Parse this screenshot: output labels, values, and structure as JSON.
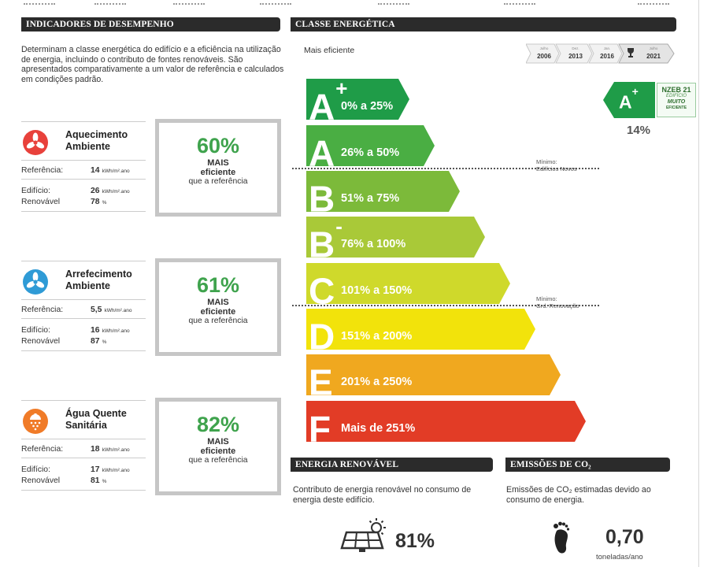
{
  "colors": {
    "header_bg": "#2b2b2b",
    "pct_green": "#3fa34d",
    "box_border": "#c6c6c6",
    "class_colors": [
      "#1f9c48",
      "#4aae43",
      "#7cba3a",
      "#a9c938",
      "#cfd92b",
      "#f2e30b",
      "#f0a81f",
      "#e23c26"
    ]
  },
  "performance": {
    "header": "INDICADORES DE DESEMPENHO",
    "intro": "Determinam a classe energética do edifício e a eficiência na utilização de energia, incluindo o contributo de fontes renováveis. São apresentados comparativamente a um valor de referência e calculados em condições padrão.",
    "services": [
      {
        "icon": "heating-fan-icon",
        "icon_color": "#e8413b",
        "title_line1": "Aquecimento",
        "title_line2": "Ambiente",
        "ref_label": "Referência:",
        "ref_value": "14",
        "ref_unit": "kWh/m².ano",
        "building_label": "Edifício:",
        "building_value": "26",
        "building_unit": "kWh/m².ano",
        "renew_label": "Renovável",
        "renew_value": "78",
        "renew_unit": "%",
        "pct": "60%",
        "mais": "MAIS",
        "eficiente": "eficiente",
        "ref_text": "que a referência"
      },
      {
        "icon": "cooling-fan-icon",
        "icon_color": "#2f9bd6",
        "title_line1": "Arrefecimento",
        "title_line2": "Ambiente",
        "ref_label": "Referência:",
        "ref_value": "5,5",
        "ref_unit": "kWh/m².ano",
        "building_label": "Edifício:",
        "building_value": "16",
        "building_unit": "kWh/m².ano",
        "renew_label": "Renovável",
        "renew_value": "87",
        "renew_unit": "%",
        "pct": "61%",
        "mais": "MAIS",
        "eficiente": "eficiente",
        "ref_text": "que a referência"
      },
      {
        "icon": "hot-water-icon",
        "icon_color": "#f07b28",
        "title_line1": "Água Quente",
        "title_line2": "Sanitária",
        "ref_label": "Referência:",
        "ref_value": "18",
        "ref_unit": "kWh/m².ano",
        "building_label": "Edifício:",
        "building_value": "17",
        "building_unit": "kWh/m².ano",
        "renew_label": "Renovável",
        "renew_value": "81",
        "renew_unit": "%",
        "pct": "82%",
        "mais": "MAIS",
        "eficiente": "eficiente",
        "ref_text": "que a referência"
      }
    ]
  },
  "energy_class": {
    "header": "CLASSE ENERGÉTICA",
    "more_efficient": "Mais eficiente",
    "timeline": [
      {
        "month": "Julho",
        "year": "2006"
      },
      {
        "month": "Dez.",
        "year": "2013"
      },
      {
        "month": "Jan.",
        "year": "2016"
      },
      {
        "month": "Julho",
        "year": "2021"
      }
    ],
    "classes": [
      {
        "letter": "A",
        "sup": "+",
        "range": "0% a 25%"
      },
      {
        "letter": "A",
        "sup": "",
        "range": "26% a 50%"
      },
      {
        "letter": "B",
        "sup": "",
        "range": "51% a 75%"
      },
      {
        "letter": "B",
        "sup": "-",
        "range": "76% a 100%"
      },
      {
        "letter": "C",
        "sup": "",
        "range": "101% a 150%"
      },
      {
        "letter": "D",
        "sup": "",
        "range": "151% a 200%"
      },
      {
        "letter": "E",
        "sup": "",
        "range": "201% a 250%"
      },
      {
        "letter": "F",
        "sup": "",
        "range": "Mais de 251%"
      }
    ],
    "min_new_label1": "Mínimo:",
    "min_new_label2": "Edifícios Novos",
    "min_reno_label1": "Mínimo:",
    "min_reno_label2": "Grd. Renovação",
    "badge_letter": "A",
    "badge_sup": "+",
    "badge_pct": "14%",
    "nzeb_line1": "NZEB 21",
    "nzeb_line2": "EDIFÍCIO",
    "nzeb_line3": "MUITO",
    "nzeb_line4": "EFICIENTE"
  },
  "renewable": {
    "header": "ENERGIA RENOVÁVEL",
    "desc": "Contributo de energia renovável no consumo de energia deste edifício.",
    "icon": "solar-panel-icon",
    "value": "81%"
  },
  "emissions": {
    "header": "EMISSÕES DE CO₂",
    "desc": "Emissões de CO₂ estimadas devido ao consumo de energia.",
    "icon": "footprint-icon",
    "value": "0,70",
    "unit": "toneladas/ano"
  }
}
